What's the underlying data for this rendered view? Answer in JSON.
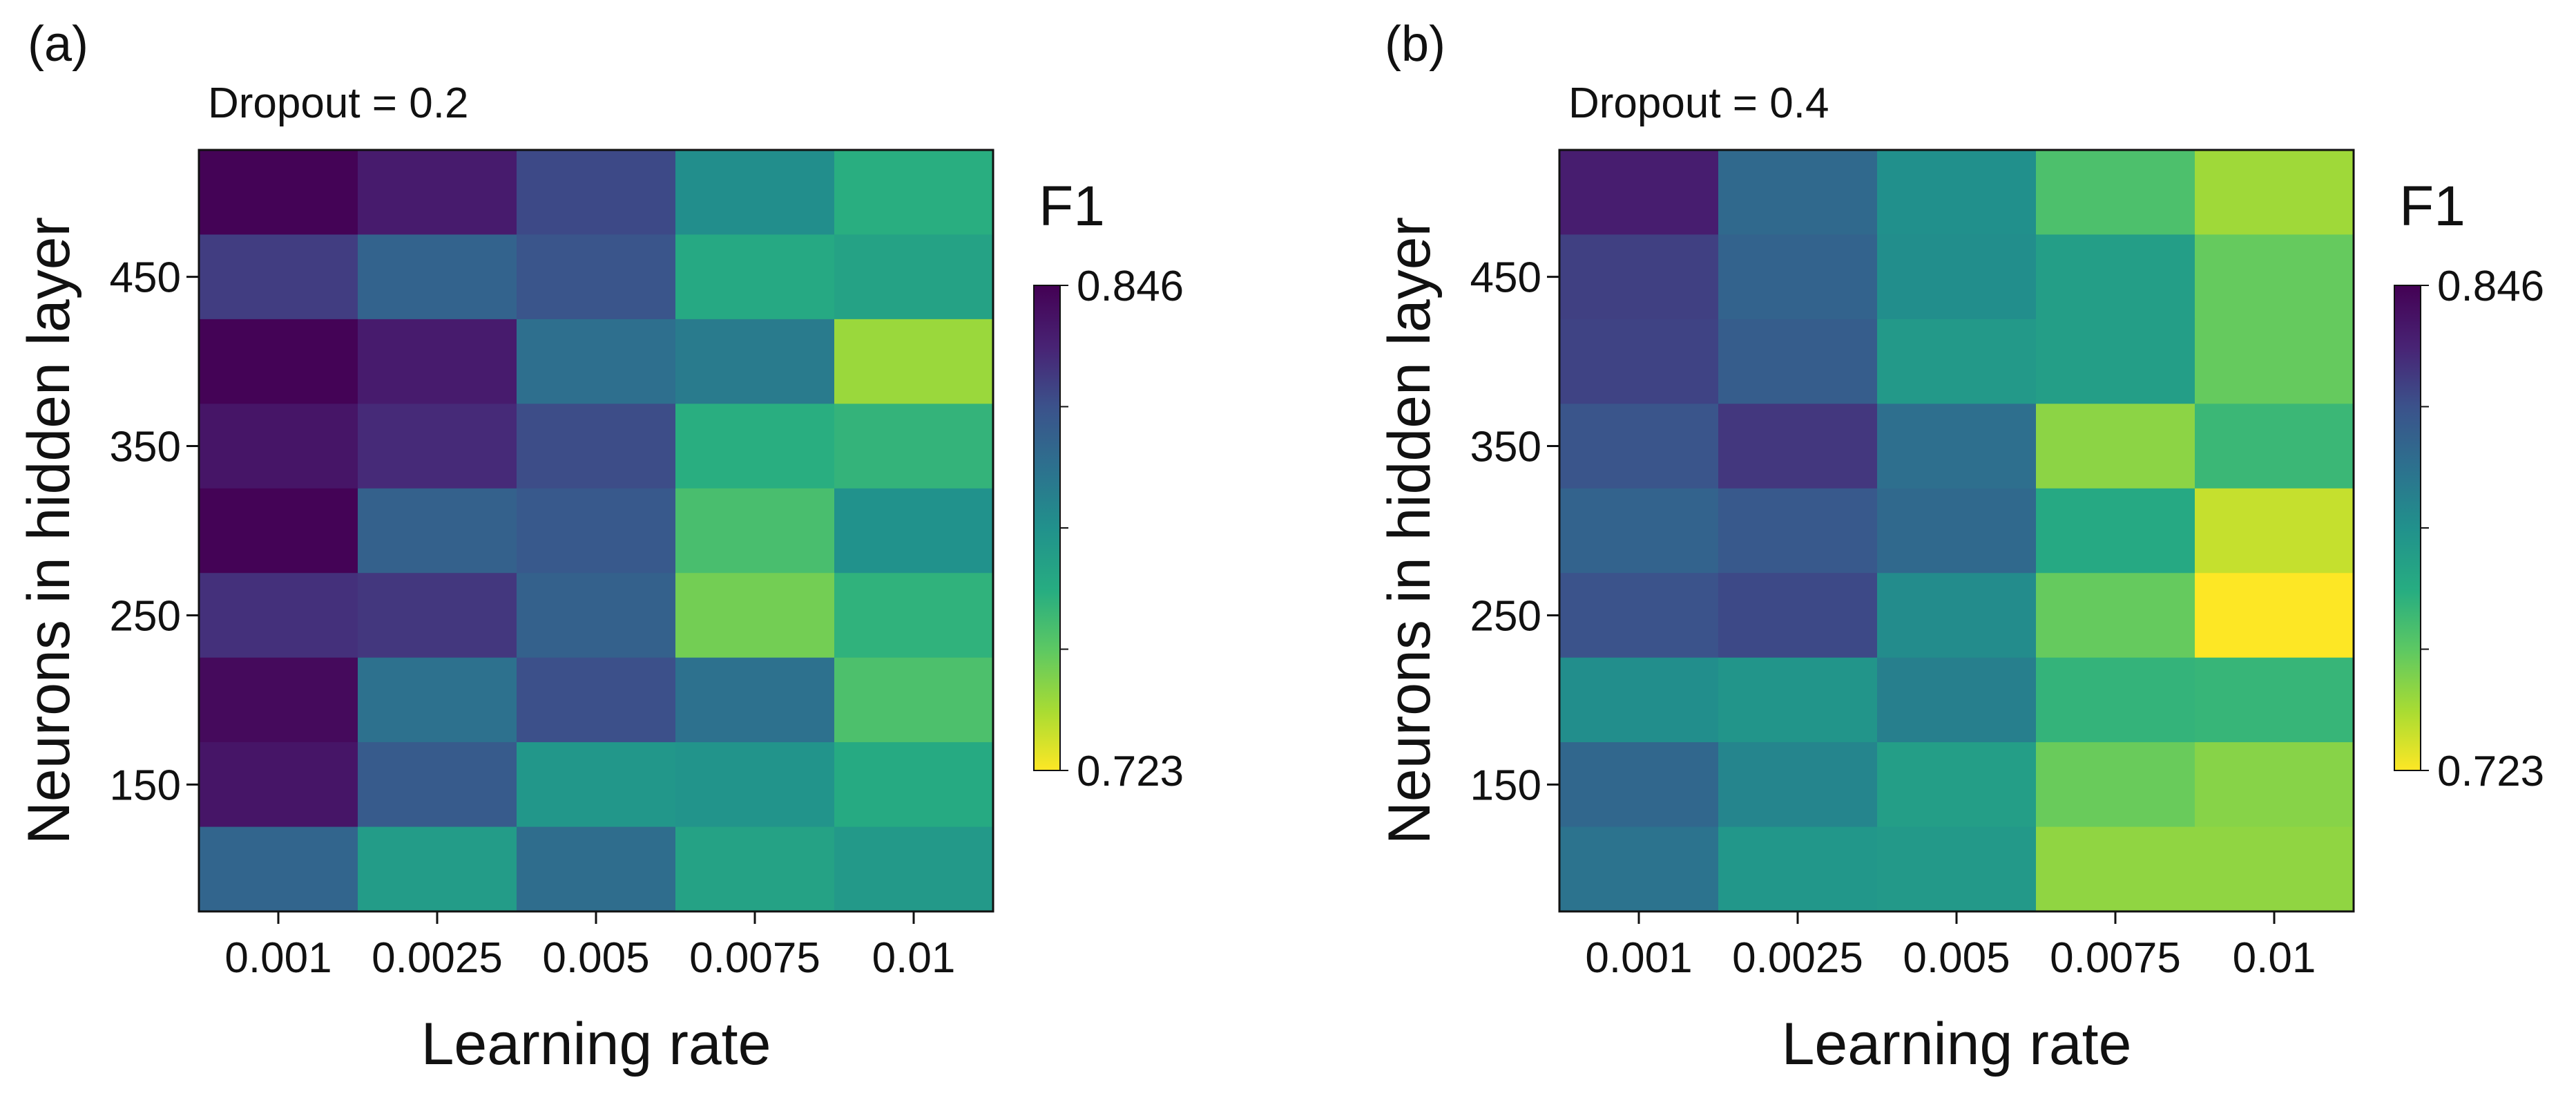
{
  "chart_data": [
    {
      "type": "heatmap",
      "panel_label": "(a)",
      "title": "Dropout = 0.2",
      "xlabel": "Learning rate",
      "ylabel": "Neurons in hidden layer",
      "x_categories": [
        "0.001",
        "0.0025",
        "0.005",
        "0.0075",
        "0.01"
      ],
      "y_categories": [
        500,
        450,
        400,
        350,
        300,
        250,
        200,
        150,
        100
      ],
      "y_ticks": [
        "450",
        "350",
        "250",
        "150"
      ],
      "y_tick_values": [
        450,
        350,
        250,
        150
      ],
      "colorbar": {
        "label": "F1",
        "max_label": "0.846",
        "min_label": "0.723",
        "vmin": 0.723,
        "vmax": 0.846,
        "colormap": "viridis_r"
      },
      "values": [
        [
          0.845,
          0.834,
          0.818,
          0.786,
          0.768
        ],
        [
          0.822,
          0.807,
          0.814,
          0.771,
          0.775
        ],
        [
          0.845,
          0.834,
          0.801,
          0.795,
          0.741
        ],
        [
          0.837,
          0.828,
          0.817,
          0.768,
          0.765
        ],
        [
          0.845,
          0.808,
          0.812,
          0.759,
          0.784
        ],
        [
          0.826,
          0.824,
          0.808,
          0.749,
          0.766
        ],
        [
          0.842,
          0.8,
          0.816,
          0.8,
          0.758
        ],
        [
          0.837,
          0.811,
          0.781,
          0.783,
          0.77
        ],
        [
          0.806,
          0.778,
          0.802,
          0.775,
          0.78
        ]
      ]
    },
    {
      "type": "heatmap",
      "panel_label": "(b)",
      "title": "Dropout = 0.4",
      "xlabel": "Learning rate",
      "ylabel": "Neurons in hidden layer",
      "x_categories": [
        "0.001",
        "0.0025",
        "0.005",
        "0.0075",
        "0.01"
      ],
      "y_categories": [
        500,
        450,
        400,
        350,
        300,
        250,
        200,
        150,
        100
      ],
      "y_ticks": [
        "450",
        "350",
        "250",
        "150"
      ],
      "y_tick_values": [
        450,
        350,
        250,
        150
      ],
      "colorbar": {
        "label": "F1",
        "max_label": "0.846",
        "min_label": "0.723",
        "vmin": 0.723,
        "vmax": 0.846,
        "colormap": "viridis_r"
      },
      "values": [
        [
          0.833,
          0.804,
          0.785,
          0.758,
          0.74
        ],
        [
          0.821,
          0.807,
          0.786,
          0.777,
          0.752
        ],
        [
          0.82,
          0.81,
          0.78,
          0.777,
          0.752
        ],
        [
          0.814,
          0.824,
          0.801,
          0.744,
          0.763
        ],
        [
          0.807,
          0.812,
          0.804,
          0.771,
          0.733
        ],
        [
          0.815,
          0.818,
          0.787,
          0.752,
          0.723
        ],
        [
          0.786,
          0.782,
          0.793,
          0.765,
          0.764
        ],
        [
          0.805,
          0.79,
          0.777,
          0.751,
          0.745
        ],
        [
          0.799,
          0.781,
          0.78,
          0.743,
          0.743
        ]
      ]
    }
  ]
}
